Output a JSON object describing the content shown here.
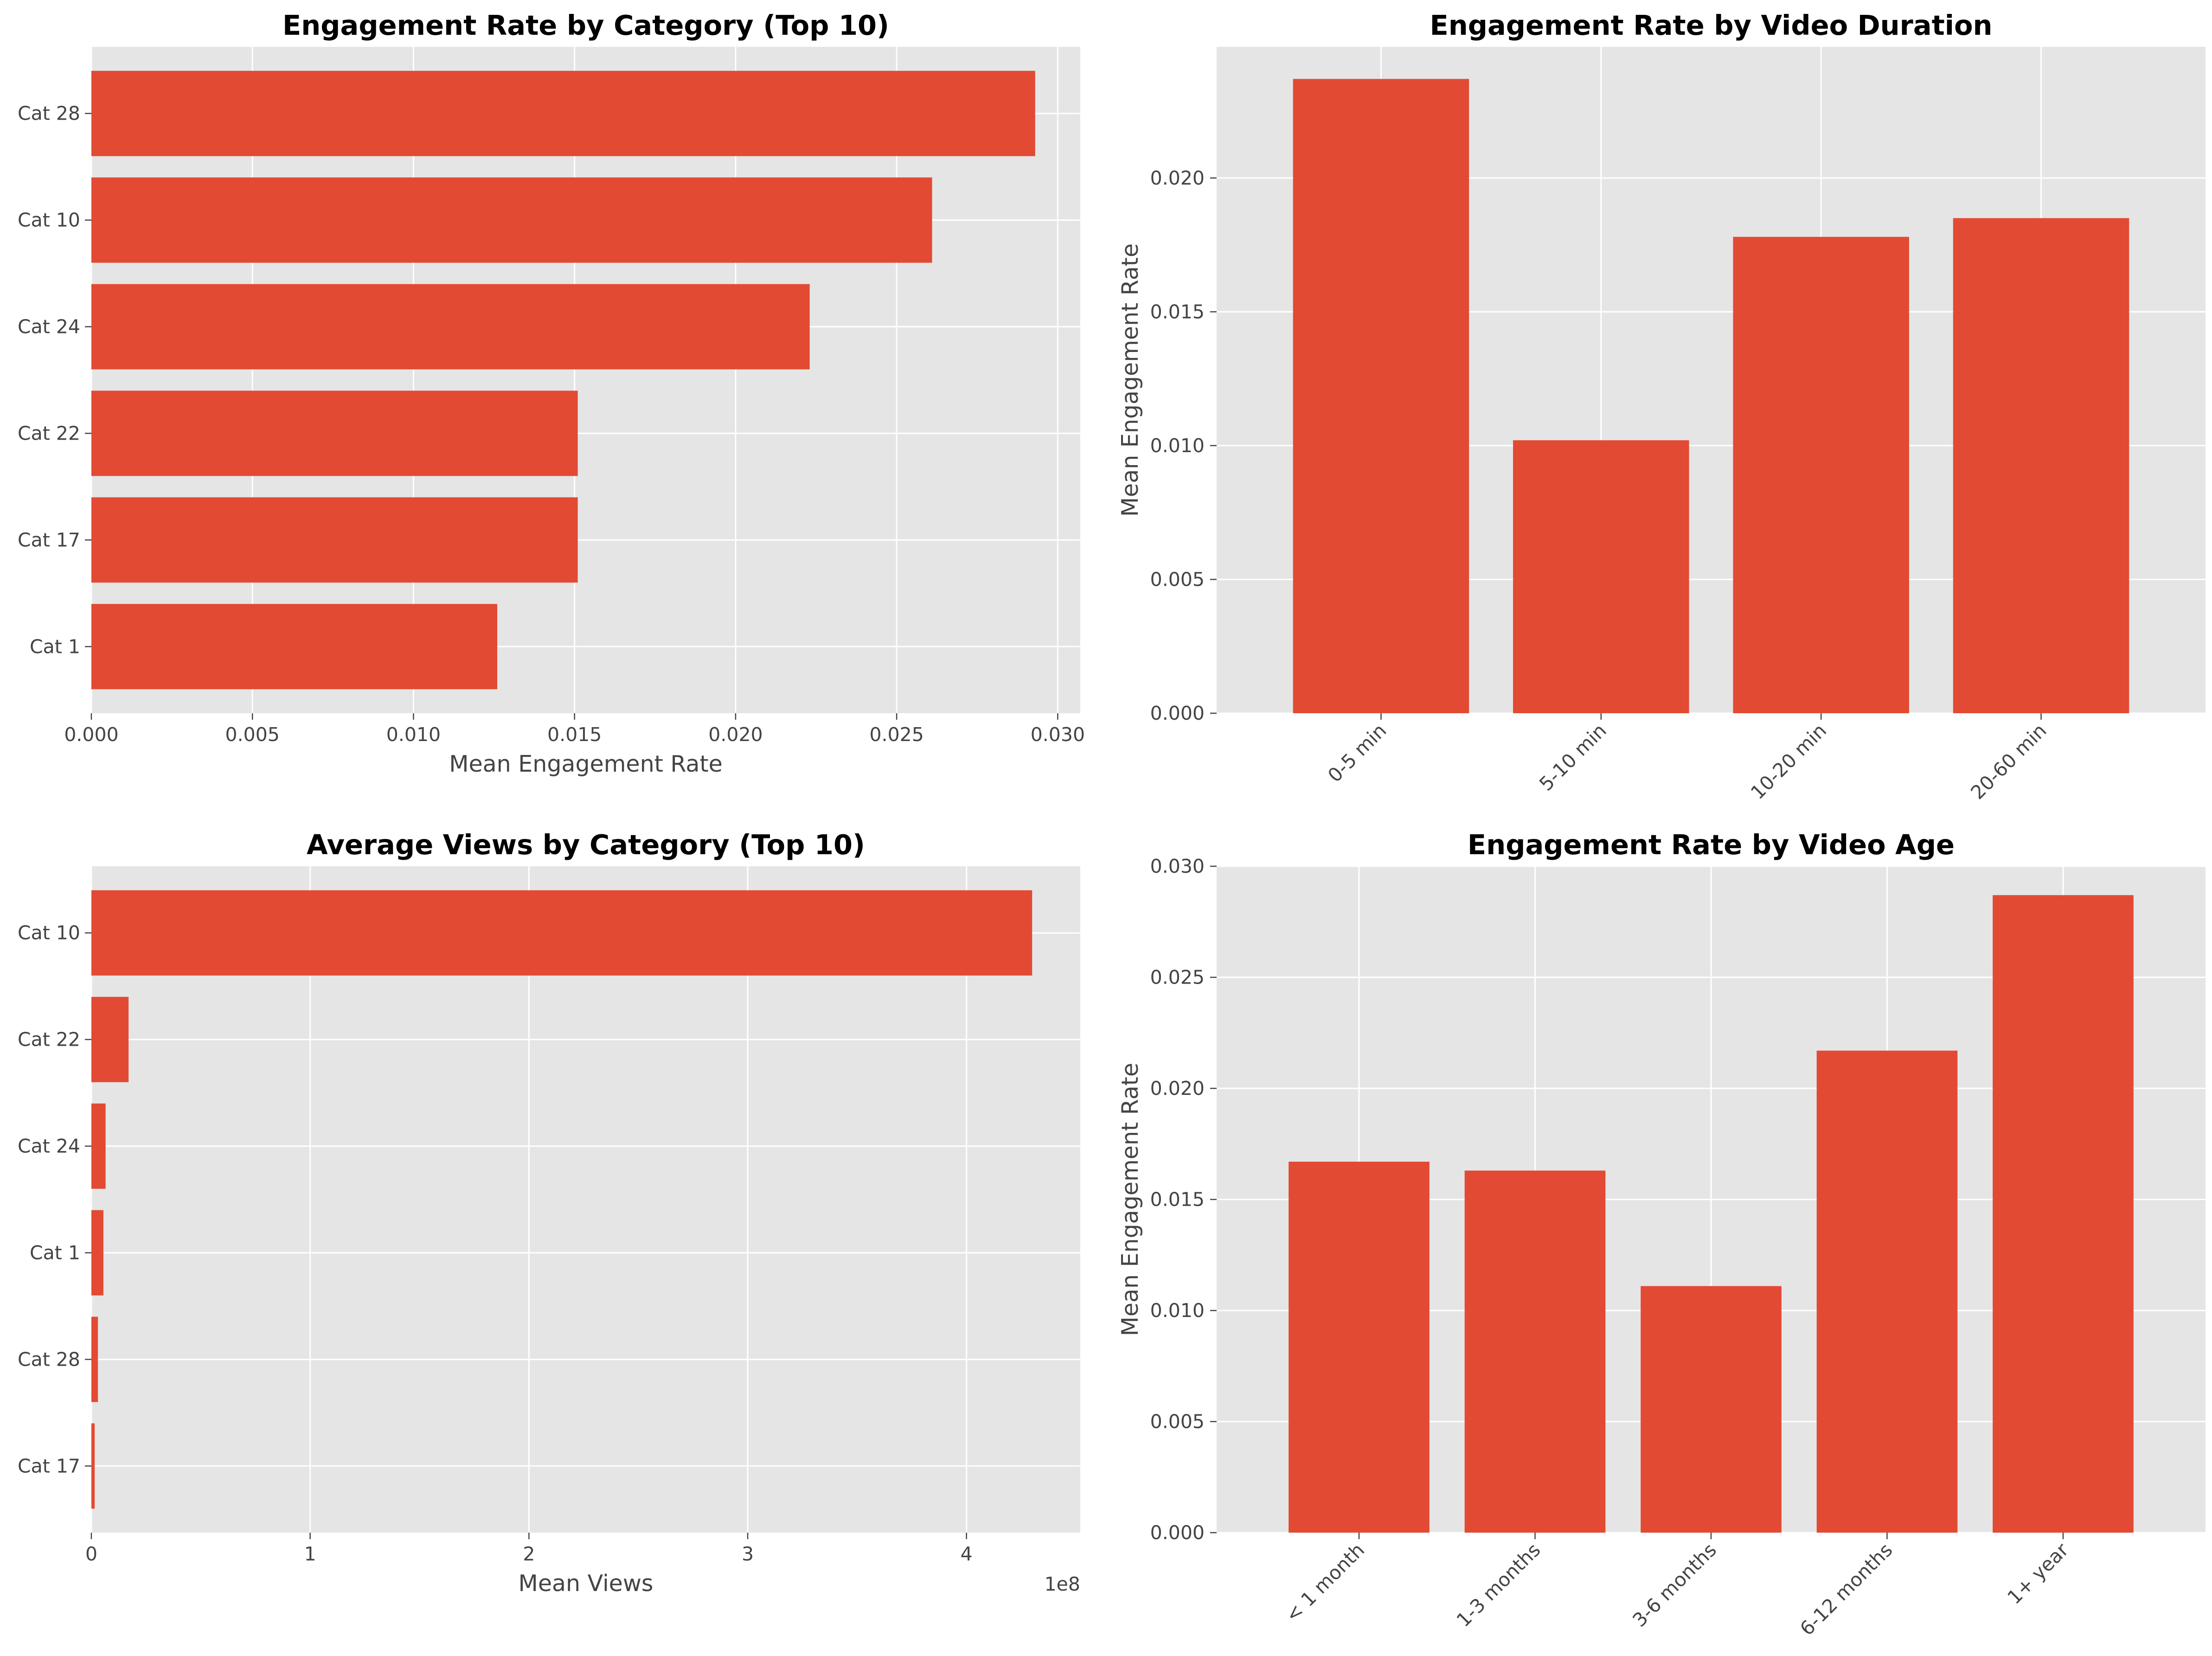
{
  "chart_data": [
    {
      "type": "bar",
      "orientation": "horizontal",
      "title": "Engagement Rate by Category (Top 10)",
      "xlabel": "Mean Engagement Rate",
      "ylabel": "",
      "categories": [
        "Cat 28",
        "Cat 10",
        "Cat 24",
        "Cat 22",
        "Cat 17",
        "Cat 1"
      ],
      "values": [
        0.0293,
        0.0261,
        0.0223,
        0.0151,
        0.0151,
        0.0126
      ],
      "xlim": [
        0,
        0.0307
      ],
      "ticks": [
        0,
        0.005,
        0.01,
        0.015,
        0.02,
        0.025,
        0.03
      ],
      "tick_labels": [
        "0.000",
        "0.005",
        "0.010",
        "0.015",
        "0.020",
        "0.025",
        "0.030"
      ],
      "grid": true
    },
    {
      "type": "bar",
      "orientation": "vertical",
      "title": "Engagement Rate by Video Duration",
      "xlabel": "",
      "ylabel": "Mean Engagement Rate",
      "categories": [
        "0-5 min",
        "5-10 min",
        "10-20 min",
        "20-60 min"
      ],
      "values": [
        0.0237,
        0.0102,
        0.0178,
        0.0185
      ],
      "ylim": [
        0,
        0.0249
      ],
      "ticks": [
        0,
        0.005,
        0.01,
        0.015,
        0.02
      ],
      "tick_labels": [
        "0.000",
        "0.005",
        "0.010",
        "0.015",
        "0.020"
      ],
      "grid": true
    },
    {
      "type": "bar",
      "orientation": "horizontal",
      "title": "Average Views by Category (Top 10)",
      "xlabel": "Mean Views",
      "ylabel": "",
      "offset_label": "1e8",
      "categories": [
        "Cat 10",
        "Cat 22",
        "Cat 24",
        "Cat 1",
        "Cat 28",
        "Cat 17"
      ],
      "values": [
        430000000,
        17000000,
        6500000,
        5500000,
        3000000,
        1500000
      ],
      "xlim": [
        0,
        452000000
      ],
      "ticks": [
        0,
        100000000,
        200000000,
        300000000,
        400000000
      ],
      "tick_labels": [
        "0",
        "1",
        "2",
        "3",
        "4"
      ],
      "grid": true
    },
    {
      "type": "bar",
      "orientation": "vertical",
      "title": "Engagement Rate by Video Age",
      "xlabel": "",
      "ylabel": "Mean Engagement Rate",
      "categories": [
        "< 1 month",
        "1-3 months",
        "3-6 months",
        "6-12 months",
        "1+ year"
      ],
      "values": [
        0.0167,
        0.0163,
        0.0111,
        0.0217,
        0.0287
      ],
      "ylim": [
        0,
        0.03
      ],
      "ticks": [
        0,
        0.005,
        0.01,
        0.015,
        0.02,
        0.025,
        0.03
      ],
      "tick_labels": [
        "0.000",
        "0.005",
        "0.010",
        "0.015",
        "0.020",
        "0.025",
        "0.030"
      ],
      "grid": true
    }
  ],
  "colors": {
    "bar": "#e24a33",
    "axes_bg": "#e5e5e5",
    "grid": "#ffffff",
    "text": "#444444"
  }
}
